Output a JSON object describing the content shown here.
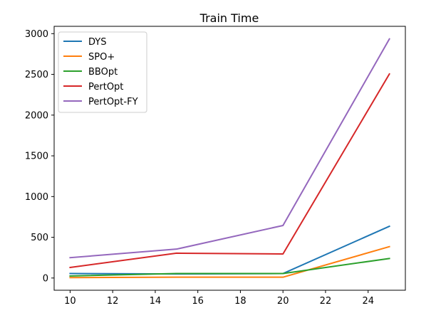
{
  "chart_data": {
    "type": "line",
    "title": "Train Time",
    "xlabel": "",
    "ylabel": "",
    "x": [
      10,
      15,
      20,
      25
    ],
    "xlim": [
      9.25,
      25.75
    ],
    "ylim": [
      -150,
      3090
    ],
    "xticks": [
      10,
      12,
      14,
      16,
      18,
      20,
      22,
      24
    ],
    "yticks": [
      0,
      500,
      1000,
      1500,
      2000,
      2500,
      3000
    ],
    "grid": false,
    "legend_position": "top-left",
    "series": [
      {
        "name": "DYS",
        "color": "#1f77b4",
        "values": [
          55,
          50,
          55,
          635
        ]
      },
      {
        "name": "SPO+",
        "color": "#ff7f0e",
        "values": [
          5,
          10,
          10,
          385
        ]
      },
      {
        "name": "BBOpt",
        "color": "#2ca02c",
        "values": [
          25,
          55,
          55,
          240
        ]
      },
      {
        "name": "PertOpt",
        "color": "#d62728",
        "values": [
          130,
          305,
          295,
          2505
        ]
      },
      {
        "name": "PertOpt-FY",
        "color": "#9467bd",
        "values": [
          250,
          355,
          645,
          2935
        ]
      }
    ]
  }
}
